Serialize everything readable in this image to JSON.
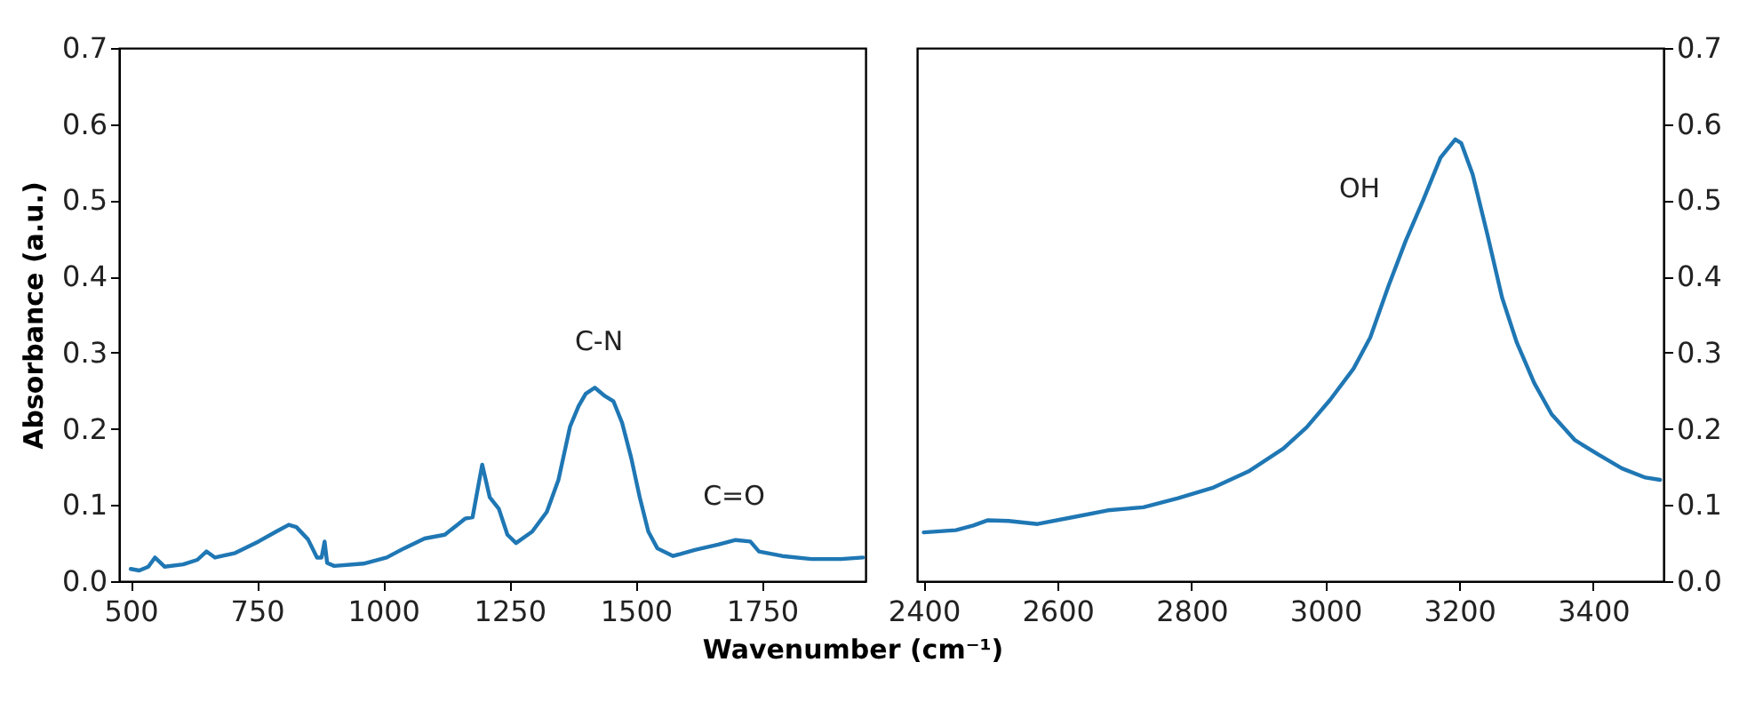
{
  "chart_data": [
    {
      "type": "line",
      "xlabel": "Wavenumber (cm⁻¹)",
      "ylabel": "Absorbance (a.u.)",
      "xlim": [
        477,
        1955
      ],
      "xticks": [
        500,
        750,
        1000,
        1250,
        1500,
        1750
      ],
      "ylim": [
        0,
        0.7
      ],
      "yticks": [
        {
          "value": 0,
          "label": "0.0"
        },
        {
          "value": 0.1,
          "label": "0.1"
        },
        {
          "value": 0.2,
          "label": "0.2"
        },
        {
          "value": 0.3,
          "label": "0.3"
        },
        {
          "value": 0.4,
          "label": "0.4"
        },
        {
          "value": 0.5,
          "label": "0.5"
        },
        {
          "value": 0.6,
          "label": "0.6"
        },
        {
          "value": 0.7,
          "label": "0.7"
        }
      ],
      "grid": false,
      "marker": "none",
      "line_style": "solid",
      "annotations": [
        "C-N",
        "C=O"
      ],
      "series": [
        {
          "color": "#1f77b4",
          "x": [
            500,
            517,
            535,
            548,
            567,
            604,
            632,
            650,
            667,
            707,
            753,
            788,
            813,
            828,
            851,
            869,
            878,
            884,
            889,
            903,
            961,
            1007,
            1041,
            1082,
            1122,
            1145,
            1162,
            1177,
            1196,
            1211,
            1229,
            1246,
            1263,
            1295,
            1324,
            1347,
            1370,
            1387,
            1401,
            1419,
            1439,
            1456,
            1473,
            1491,
            1508,
            1525,
            1543,
            1574,
            1617,
            1663,
            1698,
            1727,
            1744,
            1790,
            1848,
            1906,
            1950
          ],
          "values": [
            0.016,
            0.014,
            0.019,
            0.031,
            0.019,
            0.022,
            0.028,
            0.039,
            0.031,
            0.037,
            0.052,
            0.065,
            0.074,
            0.071,
            0.055,
            0.031,
            0.031,
            0.052,
            0.024,
            0.02,
            0.023,
            0.031,
            0.043,
            0.056,
            0.061,
            0.073,
            0.082,
            0.084,
            0.153,
            0.11,
            0.095,
            0.061,
            0.05,
            0.065,
            0.091,
            0.133,
            0.203,
            0.23,
            0.246,
            0.254,
            0.243,
            0.236,
            0.208,
            0.162,
            0.11,
            0.065,
            0.043,
            0.033,
            0.041,
            0.048,
            0.054,
            0.052,
            0.039,
            0.033,
            0.029,
            0.029,
            0.031
          ]
        }
      ]
    },
    {
      "type": "line",
      "xlim": [
        2390,
        3505
      ],
      "xticks": [
        2400,
        2600,
        2800,
        3000,
        3200,
        3400
      ],
      "ylim": [
        0,
        0.7
      ],
      "yticks": [
        {
          "value": 0,
          "label": "0.0"
        },
        {
          "value": 0.1,
          "label": "0.1"
        },
        {
          "value": 0.2,
          "label": "0.2"
        },
        {
          "value": 0.3,
          "label": "0.3"
        },
        {
          "value": 0.4,
          "label": "0.4"
        },
        {
          "value": 0.5,
          "label": "0.5"
        },
        {
          "value": 0.6,
          "label": "0.6"
        },
        {
          "value": 0.7,
          "label": "0.7"
        }
      ],
      "grid": false,
      "marker": "none",
      "line_style": "solid",
      "annotations": [
        "OH"
      ],
      "series": [
        {
          "color": "#1f77b4",
          "x": [
            2400,
            2448,
            2474,
            2496,
            2527,
            2570,
            2623,
            2675,
            2728,
            2780,
            2833,
            2885,
            2937,
            2972,
            3007,
            3042,
            3067,
            3094,
            3120,
            3146,
            3172,
            3194,
            3203,
            3220,
            3242,
            3264,
            3286,
            3312,
            3338,
            3373,
            3408,
            3443,
            3478,
            3500
          ],
          "values": [
            0.064,
            0.067,
            0.073,
            0.08,
            0.079,
            0.075,
            0.084,
            0.093,
            0.097,
            0.109,
            0.123,
            0.144,
            0.174,
            0.202,
            0.238,
            0.279,
            0.32,
            0.387,
            0.447,
            0.5,
            0.556,
            0.58,
            0.575,
            0.534,
            0.455,
            0.372,
            0.313,
            0.26,
            0.219,
            0.185,
            0.166,
            0.148,
            0.136,
            0.133
          ]
        }
      ]
    }
  ]
}
